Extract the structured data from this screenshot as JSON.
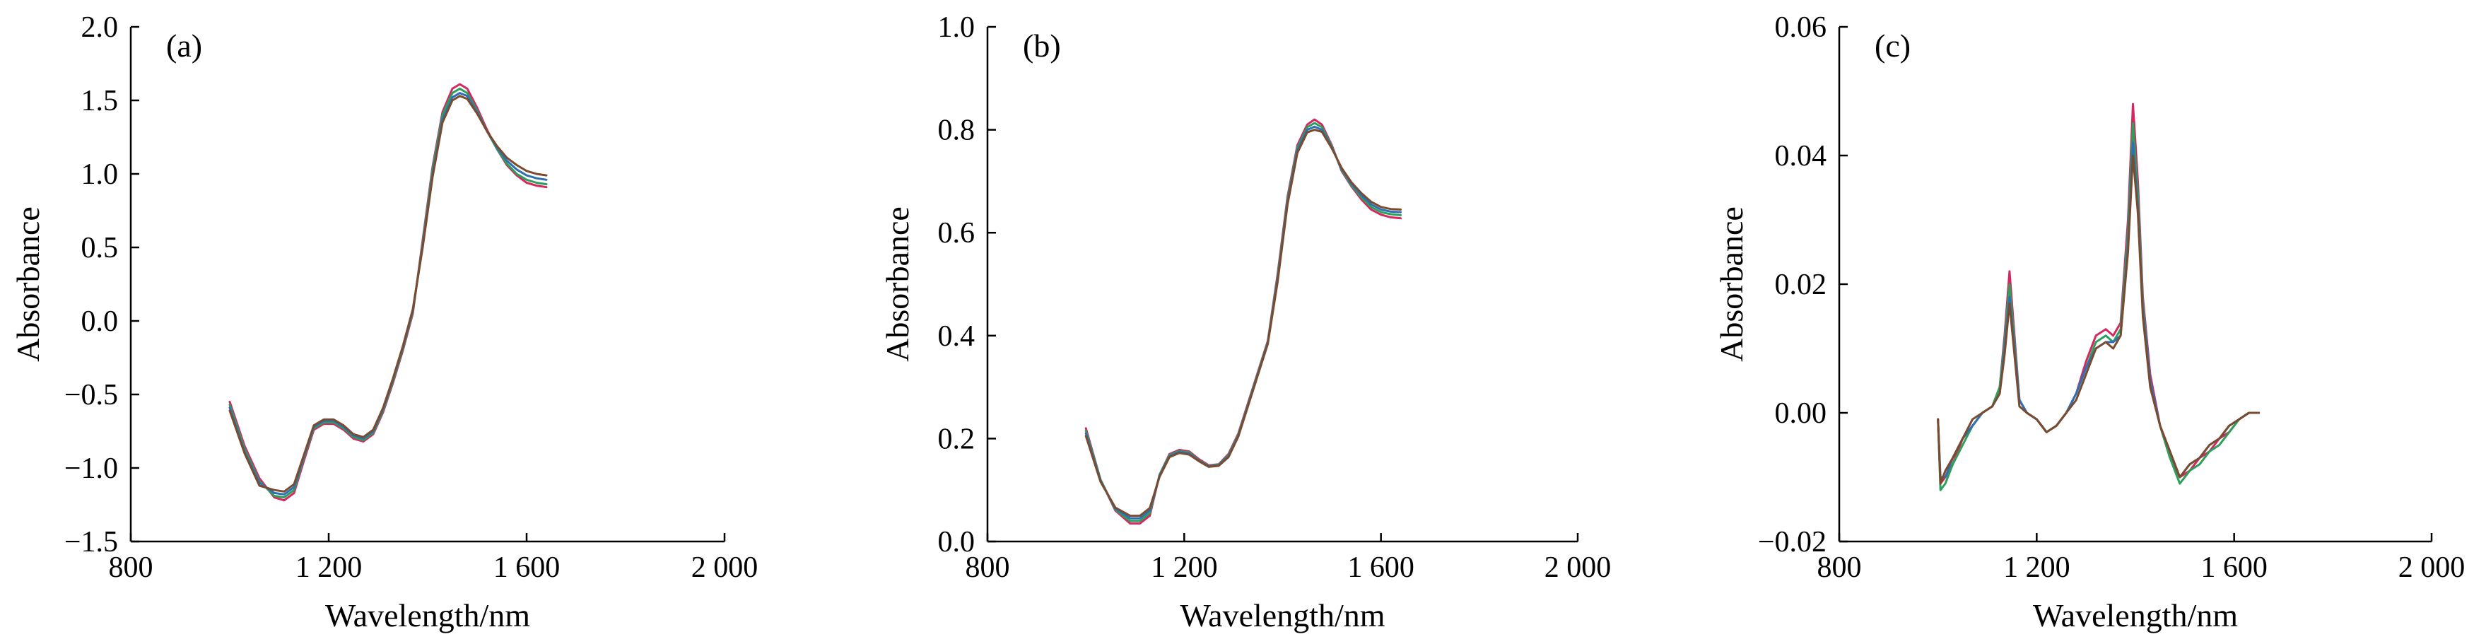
{
  "chart_data": [
    {
      "type": "line",
      "panel_label": "(a)",
      "xlabel": "Wavelength/nm",
      "ylabel": "Absorbance",
      "xlim": [
        800,
        2000
      ],
      "ylim": [
        -1.5,
        2.0
      ],
      "xticks": [
        800,
        1200,
        1600,
        2000
      ],
      "xtick_labels": [
        "800",
        "1 200",
        "1 600",
        "2 000"
      ],
      "yticks": [
        -1.5,
        -1.0,
        -0.5,
        0.0,
        0.5,
        1.0,
        1.5,
        2.0
      ],
      "ytick_labels": [
        "−1.5",
        "−1.0",
        "−0.5",
        "0.0",
        "0.5",
        "1.0",
        "1.5",
        "2.0"
      ],
      "grid": false,
      "legend": "none",
      "series": [
        {
          "x": [
            1000,
            1030,
            1060,
            1090,
            1110,
            1130,
            1150,
            1170,
            1190,
            1210,
            1230,
            1250,
            1270,
            1290,
            1310,
            1330,
            1350,
            1370,
            1390,
            1410,
            1430,
            1450,
            1465,
            1480,
            1500,
            1520,
            1540,
            1560,
            1580,
            1600,
            1620,
            1640
          ],
          "values": [
            -0.55,
            -0.85,
            -1.07,
            -1.2,
            -1.22,
            -1.17,
            -0.95,
            -0.74,
            -0.7,
            -0.7,
            -0.74,
            -0.8,
            -0.82,
            -0.77,
            -0.62,
            -0.42,
            -0.2,
            0.05,
            0.55,
            1.05,
            1.42,
            1.58,
            1.61,
            1.58,
            1.45,
            1.3,
            1.17,
            1.06,
            0.99,
            0.94,
            0.92,
            0.91
          ]
        },
        {
          "x": [
            1000,
            1030,
            1060,
            1090,
            1110,
            1130,
            1150,
            1170,
            1190,
            1210,
            1230,
            1250,
            1270,
            1290,
            1310,
            1330,
            1350,
            1370,
            1390,
            1410,
            1430,
            1450,
            1465,
            1480,
            1500,
            1520,
            1540,
            1560,
            1580,
            1600,
            1620,
            1640
          ],
          "values": [
            -0.57,
            -0.87,
            -1.09,
            -1.19,
            -1.2,
            -1.15,
            -0.93,
            -0.73,
            -0.69,
            -0.69,
            -0.73,
            -0.79,
            -0.81,
            -0.76,
            -0.61,
            -0.41,
            -0.19,
            0.06,
            0.53,
            1.03,
            1.4,
            1.55,
            1.58,
            1.55,
            1.43,
            1.29,
            1.17,
            1.07,
            1.0,
            0.96,
            0.94,
            0.93
          ]
        },
        {
          "x": [
            1000,
            1030,
            1060,
            1090,
            1110,
            1130,
            1150,
            1170,
            1190,
            1210,
            1230,
            1250,
            1270,
            1290,
            1310,
            1330,
            1350,
            1370,
            1390,
            1410,
            1430,
            1450,
            1465,
            1480,
            1500,
            1520,
            1540,
            1560,
            1580,
            1600,
            1620,
            1640
          ],
          "values": [
            -0.59,
            -0.89,
            -1.1,
            -1.17,
            -1.18,
            -1.13,
            -0.92,
            -0.72,
            -0.68,
            -0.68,
            -0.72,
            -0.78,
            -0.8,
            -0.75,
            -0.6,
            -0.4,
            -0.18,
            0.07,
            0.51,
            1.0,
            1.37,
            1.52,
            1.55,
            1.53,
            1.42,
            1.29,
            1.18,
            1.09,
            1.03,
            0.99,
            0.97,
            0.96
          ]
        },
        {
          "x": [
            1000,
            1030,
            1060,
            1090,
            1110,
            1130,
            1150,
            1170,
            1190,
            1210,
            1230,
            1250,
            1270,
            1290,
            1310,
            1330,
            1350,
            1370,
            1390,
            1410,
            1430,
            1450,
            1465,
            1480,
            1500,
            1520,
            1540,
            1560,
            1580,
            1600,
            1620,
            1640
          ],
          "values": [
            -0.61,
            -0.9,
            -1.12,
            -1.15,
            -1.16,
            -1.11,
            -0.91,
            -0.71,
            -0.67,
            -0.67,
            -0.71,
            -0.77,
            -0.79,
            -0.74,
            -0.59,
            -0.39,
            -0.17,
            0.08,
            0.5,
            0.98,
            1.35,
            1.5,
            1.53,
            1.51,
            1.41,
            1.29,
            1.19,
            1.11,
            1.06,
            1.02,
            1.0,
            0.99
          ]
        }
      ]
    },
    {
      "type": "line",
      "panel_label": "(b)",
      "xlabel": "Wavelength/nm",
      "ylabel": "Absorbance",
      "xlim": [
        800,
        2000
      ],
      "ylim": [
        0.0,
        1.0
      ],
      "xticks": [
        800,
        1200,
        1600,
        2000
      ],
      "xtick_labels": [
        "800",
        "1 200",
        "1 600",
        "2 000"
      ],
      "yticks": [
        0.0,
        0.2,
        0.4,
        0.6,
        0.8,
        1.0
      ],
      "ytick_labels": [
        "0.0",
        "0.2",
        "0.4",
        "0.6",
        "0.8",
        "1.0"
      ],
      "grid": false,
      "legend": "none",
      "series": [
        {
          "x": [
            1000,
            1030,
            1060,
            1090,
            1110,
            1130,
            1150,
            1170,
            1190,
            1210,
            1230,
            1250,
            1270,
            1290,
            1310,
            1330,
            1350,
            1370,
            1390,
            1410,
            1430,
            1450,
            1465,
            1480,
            1500,
            1520,
            1540,
            1560,
            1580,
            1600,
            1620,
            1640
          ],
          "values": [
            0.22,
            0.12,
            0.06,
            0.035,
            0.035,
            0.05,
            0.13,
            0.17,
            0.178,
            0.175,
            0.16,
            0.148,
            0.15,
            0.17,
            0.21,
            0.27,
            0.33,
            0.39,
            0.52,
            0.67,
            0.77,
            0.81,
            0.82,
            0.81,
            0.77,
            0.72,
            0.69,
            0.665,
            0.645,
            0.635,
            0.63,
            0.628
          ]
        },
        {
          "x": [
            1000,
            1030,
            1060,
            1090,
            1110,
            1130,
            1150,
            1170,
            1190,
            1210,
            1230,
            1250,
            1270,
            1290,
            1310,
            1330,
            1350,
            1370,
            1390,
            1410,
            1430,
            1450,
            1465,
            1480,
            1500,
            1520,
            1540,
            1560,
            1580,
            1600,
            1620,
            1640
          ],
          "values": [
            0.215,
            0.12,
            0.062,
            0.04,
            0.04,
            0.055,
            0.13,
            0.168,
            0.176,
            0.173,
            0.158,
            0.147,
            0.149,
            0.168,
            0.208,
            0.268,
            0.328,
            0.388,
            0.515,
            0.665,
            0.765,
            0.805,
            0.813,
            0.805,
            0.768,
            0.722,
            0.692,
            0.669,
            0.65,
            0.64,
            0.636,
            0.634
          ]
        },
        {
          "x": [
            1000,
            1030,
            1060,
            1090,
            1110,
            1130,
            1150,
            1170,
            1190,
            1210,
            1230,
            1250,
            1270,
            1290,
            1310,
            1330,
            1350,
            1370,
            1390,
            1410,
            1430,
            1450,
            1465,
            1480,
            1500,
            1520,
            1540,
            1560,
            1580,
            1600,
            1620,
            1640
          ],
          "values": [
            0.21,
            0.118,
            0.064,
            0.045,
            0.045,
            0.06,
            0.128,
            0.166,
            0.174,
            0.171,
            0.157,
            0.146,
            0.148,
            0.166,
            0.206,
            0.266,
            0.326,
            0.386,
            0.51,
            0.66,
            0.76,
            0.8,
            0.806,
            0.8,
            0.766,
            0.724,
            0.695,
            0.673,
            0.655,
            0.645,
            0.641,
            0.64
          ]
        },
        {
          "x": [
            1000,
            1030,
            1060,
            1090,
            1110,
            1130,
            1150,
            1170,
            1190,
            1210,
            1230,
            1250,
            1270,
            1290,
            1310,
            1330,
            1350,
            1370,
            1390,
            1410,
            1430,
            1450,
            1465,
            1480,
            1500,
            1520,
            1540,
            1560,
            1580,
            1600,
            1620,
            1640
          ],
          "values": [
            0.205,
            0.116,
            0.066,
            0.05,
            0.05,
            0.065,
            0.126,
            0.164,
            0.172,
            0.169,
            0.156,
            0.145,
            0.147,
            0.164,
            0.204,
            0.264,
            0.324,
            0.384,
            0.505,
            0.655,
            0.755,
            0.795,
            0.8,
            0.796,
            0.764,
            0.726,
            0.698,
            0.677,
            0.66,
            0.65,
            0.646,
            0.645
          ]
        }
      ]
    },
    {
      "type": "line",
      "panel_label": "(c)",
      "xlabel": "Wavelength/nm",
      "ylabel": "Absorbance",
      "xlim": [
        800,
        2000
      ],
      "ylim": [
        -0.02,
        0.06
      ],
      "xticks": [
        800,
        1200,
        1600,
        2000
      ],
      "xtick_labels": [
        "800",
        "1 200",
        "1 600",
        "2 000"
      ],
      "yticks": [
        -0.02,
        0.0,
        0.02,
        0.04,
        0.06
      ],
      "ytick_labels": [
        "−0.02",
        "0.00",
        "0.02",
        "0.04",
        "0.06"
      ],
      "grid": false,
      "legend": "none",
      "series": [
        {
          "x": [
            1000,
            1005,
            1015,
            1030,
            1050,
            1070,
            1090,
            1110,
            1125,
            1135,
            1145,
            1155,
            1165,
            1180,
            1200,
            1220,
            1240,
            1260,
            1280,
            1300,
            1320,
            1340,
            1355,
            1370,
            1385,
            1395,
            1405,
            1415,
            1430,
            1450,
            1470,
            1490,
            1510,
            1530,
            1550,
            1570,
            1590,
            1610,
            1630,
            1650
          ],
          "values": [
            -0.001,
            -0.011,
            -0.01,
            -0.008,
            -0.004,
            -0.002,
            0.0,
            0.001,
            0.004,
            0.012,
            0.022,
            0.012,
            0.002,
            0.0,
            -0.001,
            -0.003,
            -0.002,
            0.0,
            0.003,
            0.008,
            0.012,
            0.013,
            0.012,
            0.014,
            0.03,
            0.048,
            0.036,
            0.018,
            0.006,
            -0.002,
            -0.007,
            -0.01,
            -0.009,
            -0.007,
            -0.006,
            -0.004,
            -0.003,
            -0.001,
            0.0,
            0.0
          ]
        },
        {
          "x": [
            1000,
            1005,
            1015,
            1030,
            1050,
            1070,
            1090,
            1110,
            1125,
            1135,
            1145,
            1155,
            1165,
            1180,
            1200,
            1220,
            1240,
            1260,
            1280,
            1300,
            1320,
            1340,
            1355,
            1370,
            1385,
            1395,
            1405,
            1415,
            1430,
            1450,
            1470,
            1490,
            1510,
            1530,
            1550,
            1570,
            1590,
            1610,
            1630,
            1650
          ],
          "values": [
            -0.001,
            -0.012,
            -0.011,
            -0.008,
            -0.005,
            -0.002,
            0.0,
            0.001,
            0.004,
            0.011,
            0.02,
            0.011,
            0.002,
            0.0,
            -0.001,
            -0.003,
            -0.002,
            0.0,
            0.003,
            0.007,
            0.011,
            0.012,
            0.011,
            0.013,
            0.028,
            0.045,
            0.034,
            0.017,
            0.005,
            -0.002,
            -0.007,
            -0.011,
            -0.009,
            -0.008,
            -0.006,
            -0.005,
            -0.003,
            -0.001,
            0.0,
            0.0
          ]
        },
        {
          "x": [
            1000,
            1005,
            1015,
            1030,
            1050,
            1070,
            1090,
            1110,
            1125,
            1135,
            1145,
            1155,
            1165,
            1180,
            1200,
            1220,
            1240,
            1260,
            1280,
            1300,
            1320,
            1340,
            1355,
            1370,
            1385,
            1395,
            1405,
            1415,
            1430,
            1450,
            1470,
            1490,
            1510,
            1530,
            1550,
            1570,
            1590,
            1610,
            1630,
            1650
          ],
          "values": [
            -0.001,
            -0.01,
            -0.01,
            -0.007,
            -0.004,
            -0.002,
            0.0,
            0.001,
            0.003,
            0.01,
            0.018,
            0.01,
            0.002,
            0.0,
            -0.001,
            -0.003,
            -0.002,
            0.0,
            0.003,
            0.007,
            0.01,
            0.011,
            0.011,
            0.012,
            0.026,
            0.042,
            0.032,
            0.016,
            0.005,
            -0.002,
            -0.006,
            -0.01,
            -0.008,
            -0.007,
            -0.005,
            -0.004,
            -0.002,
            -0.001,
            0.0,
            0.0
          ]
        },
        {
          "x": [
            1000,
            1005,
            1015,
            1030,
            1050,
            1070,
            1090,
            1110,
            1125,
            1135,
            1145,
            1155,
            1165,
            1180,
            1200,
            1220,
            1240,
            1260,
            1280,
            1300,
            1320,
            1340,
            1355,
            1370,
            1385,
            1395,
            1405,
            1415,
            1430,
            1450,
            1470,
            1490,
            1510,
            1530,
            1550,
            1570,
            1590,
            1610,
            1630,
            1650
          ],
          "values": [
            -0.001,
            -0.011,
            -0.009,
            -0.007,
            -0.004,
            -0.001,
            0.0,
            0.001,
            0.003,
            0.009,
            0.017,
            0.009,
            0.001,
            0.0,
            -0.001,
            -0.003,
            -0.002,
            0.0,
            0.002,
            0.006,
            0.01,
            0.011,
            0.01,
            0.012,
            0.025,
            0.04,
            0.031,
            0.015,
            0.004,
            -0.002,
            -0.006,
            -0.01,
            -0.008,
            -0.007,
            -0.005,
            -0.004,
            -0.002,
            -0.001,
            0.0,
            0.0
          ]
        }
      ]
    }
  ],
  "series_colors": [
    "#d62760",
    "#2aa05a",
    "#2f6fb5",
    "#7a4b2e"
  ]
}
